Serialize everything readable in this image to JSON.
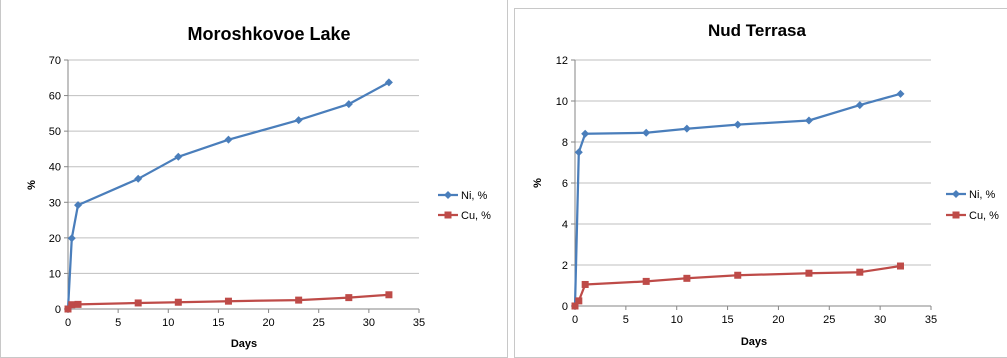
{
  "chart_data": [
    {
      "type": "line",
      "title": "Moroshkovoe Lake",
      "xlabel": "Days",
      "ylabel": "%",
      "xlim": [
        0,
        35
      ],
      "ylim": [
        0,
        70
      ],
      "xticks": [
        0,
        5,
        10,
        15,
        20,
        25,
        30,
        35
      ],
      "yticks": [
        0,
        10,
        20,
        30,
        40,
        50,
        60,
        70
      ],
      "grid": "horizontal",
      "legend_position": "right",
      "x": [
        0,
        0.375,
        1,
        7,
        11,
        16,
        23,
        28,
        32
      ],
      "series": [
        {
          "name": "Ni, %",
          "color": "#4a7ebb",
          "marker": "diamond",
          "values": [
            0,
            19.9,
            29.2,
            36.6,
            42.8,
            47.6,
            53.1,
            57.6,
            63.7
          ]
        },
        {
          "name": "Cu, %",
          "color": "#be4b48",
          "marker": "square",
          "values": [
            0,
            1.2,
            1.3,
            1.7,
            1.9,
            2.2,
            2.5,
            3.2,
            4.0
          ]
        }
      ]
    },
    {
      "type": "line",
      "title": "Nud Terrasa",
      "xlabel": "Days",
      "ylabel": "%",
      "xlim": [
        0,
        35
      ],
      "ylim": [
        0,
        12
      ],
      "xticks": [
        0,
        5,
        10,
        15,
        20,
        25,
        30,
        35
      ],
      "yticks": [
        0,
        2,
        4,
        6,
        8,
        10,
        12
      ],
      "grid": "horizontal",
      "legend_position": "right",
      "x": [
        0,
        0.375,
        1,
        7,
        11,
        16,
        23,
        28,
        32
      ],
      "series": [
        {
          "name": "Ni, %",
          "color": "#4a7ebb",
          "marker": "diamond",
          "values": [
            0,
            7.5,
            8.4,
            8.45,
            8.65,
            8.85,
            9.05,
            9.8,
            10.35
          ]
        },
        {
          "name": "Cu, %",
          "color": "#be4b48",
          "marker": "square",
          "values": [
            0,
            0.25,
            1.05,
            1.2,
            1.35,
            1.5,
            1.6,
            1.65,
            1.95
          ]
        }
      ]
    }
  ]
}
